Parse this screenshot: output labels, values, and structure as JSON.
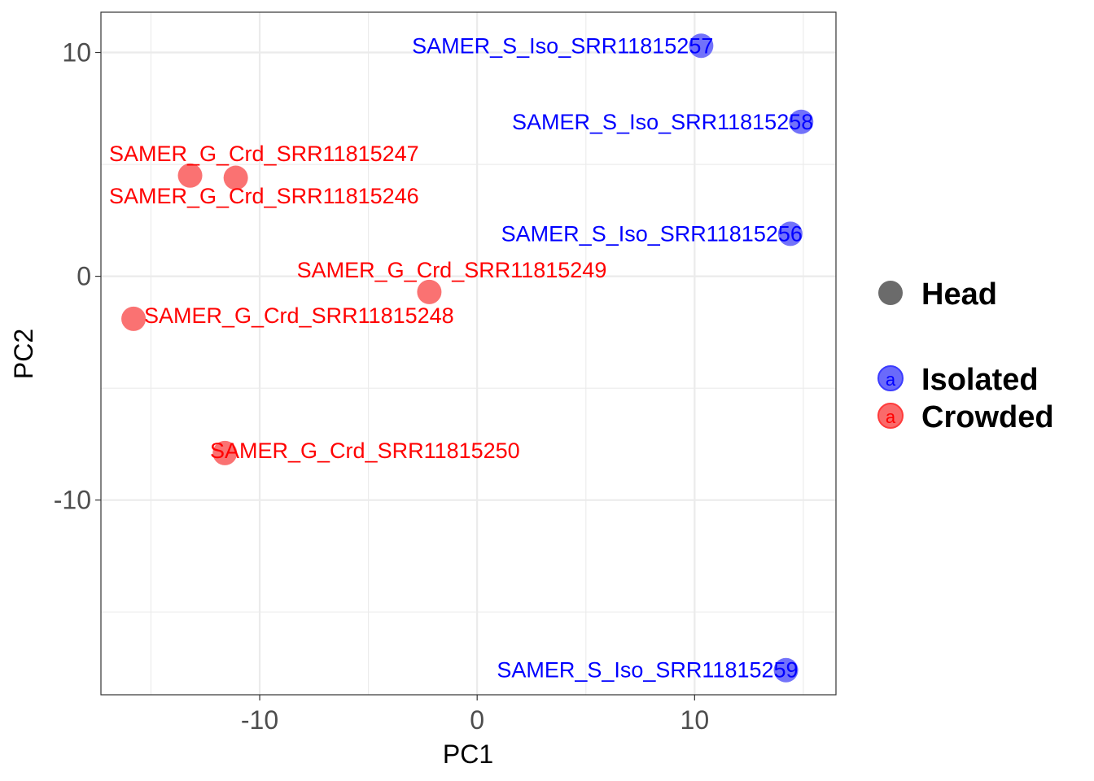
{
  "chart_data": {
    "type": "scatter",
    "title": "",
    "xlabel": "PC1",
    "ylabel": "PC2",
    "xlim": [
      -17.3,
      16.5
    ],
    "ylim": [
      -18.7,
      11.8
    ],
    "xticks": [
      -10,
      0,
      10
    ],
    "xtick_labels": [
      "-10",
      "0",
      "10"
    ],
    "yticks": [
      10,
      0,
      -10
    ],
    "ytick_labels": [
      "10",
      "0",
      "-10"
    ],
    "grid": true,
    "legend": {
      "placement": "right",
      "shape_title": "Head",
      "entries": [
        {
          "name": "Isolated",
          "color": "#5b5bff",
          "glyph": "a"
        },
        {
          "name": "Crowded",
          "color": "#ff5b5b",
          "glyph": "a"
        }
      ]
    },
    "colors": {
      "isolated_point": "#6a6afa",
      "crowded_point": "#fa6a6a",
      "isolated_label": "#0000ff",
      "crowded_label": "#ff0000"
    },
    "series": [
      {
        "name": "Isolated",
        "points": [
          {
            "label": "SAMER_S_Iso_SRR11815257",
            "x": 10.3,
            "y": 10.3,
            "anchor": "end"
          },
          {
            "label": "SAMER_S_Iso_SRR11815258",
            "x": 14.9,
            "y": 6.9,
            "anchor": "end"
          },
          {
            "label": "SAMER_S_Iso_SRR11815256",
            "x": 14.4,
            "y": 1.9,
            "anchor": "end"
          },
          {
            "label": "SAMER_S_Iso_SRR11815259",
            "x": 14.2,
            "y": -17.6,
            "anchor": "end"
          }
        ]
      },
      {
        "name": "Crowded",
        "points": [
          {
            "label": "SAMER_G_Crd_SRR11815247",
            "x": -13.2,
            "y": 4.5,
            "anchor": "start",
            "dy": -0.9
          },
          {
            "label": "SAMER_G_Crd_SRR11815246",
            "x": -11.1,
            "y": 4.4,
            "anchor": "end",
            "dy": -1.0
          },
          {
            "label": "SAMER_G_Crd_SRR11815249",
            "x": -2.2,
            "y": -0.7,
            "anchor": "middle",
            "dy": 0.8
          },
          {
            "label": "SAMER_G_Crd_SRR11815248",
            "x": -15.8,
            "y": -1.9,
            "anchor": "start",
            "dy": 0
          },
          {
            "label": "SAMER_G_Crd_SRR11815250",
            "x": -11.6,
            "y": -7.9,
            "anchor": "start",
            "dy": 0
          }
        ]
      }
    ]
  }
}
